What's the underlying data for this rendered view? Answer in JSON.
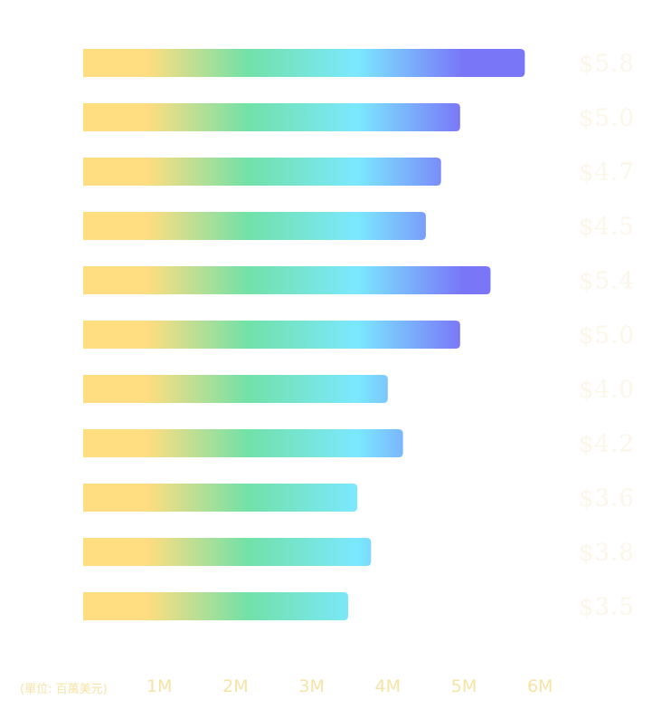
{
  "colors": {
    "gradient_stops": [
      "#FFDD80",
      "#72E1A8",
      "#7BE8FF",
      "#7A76F8"
    ],
    "axis_text": "#F6E3A6",
    "value_text": "#FBF6E8"
  },
  "chart_data": {
    "type": "bar",
    "orientation": "horizontal",
    "unit_label": "(單位: 百萬美元)",
    "xtick_labels": [
      "1M",
      "2M",
      "3M",
      "4M",
      "5M",
      "6M"
    ],
    "xticks": [
      1,
      2,
      3,
      4,
      5,
      6
    ],
    "xlim": [
      0,
      6.3
    ],
    "values": [
      5.8,
      4.95,
      4.7,
      4.5,
      5.35,
      4.95,
      4.0,
      4.2,
      3.6,
      3.78,
      3.48
    ],
    "value_labels": [
      "$5.8",
      "$5.0",
      "$4.7",
      "$4.5",
      "$5.4",
      "$5.0",
      "$4.0",
      "$4.2",
      "$3.6",
      "$3.8",
      "$3.5"
    ],
    "grid": false,
    "legend": "none"
  }
}
